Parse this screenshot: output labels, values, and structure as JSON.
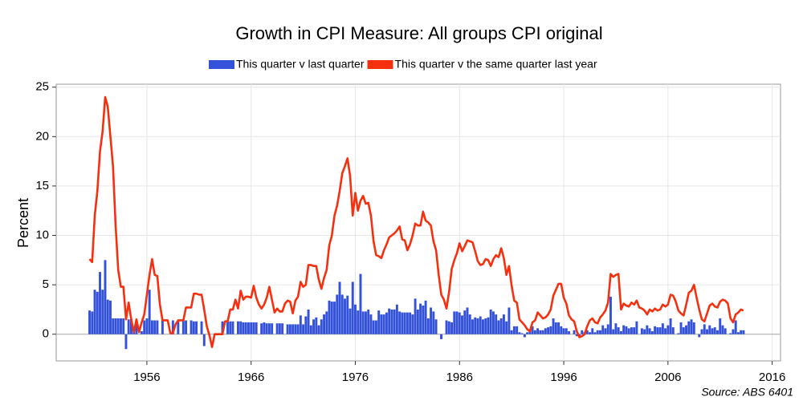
{
  "chart_data": {
    "type": "bar-line",
    "title": "Growth in CPI Measure: All groups CPI original",
    "y_label": "Percent",
    "source": "Source: ABS 6401",
    "legend": "top",
    "grid": true,
    "xlim": [
      1947.3,
      2016.8
    ],
    "xticks": [
      1956,
      1966,
      1976,
      1986,
      1996,
      2006,
      2016
    ],
    "ylim": [
      -2.7,
      25.3
    ],
    "yticks": [
      0,
      5,
      10,
      15,
      20,
      25
    ],
    "x": [
      1950.5,
      1950.75,
      1951,
      1951.25,
      1951.5,
      1951.75,
      1952,
      1952.25,
      1952.5,
      1952.75,
      1953,
      1953.25,
      1953.5,
      1953.75,
      1954,
      1954.25,
      1954.5,
      1954.75,
      1955,
      1955.25,
      1955.5,
      1955.75,
      1956,
      1956.25,
      1956.5,
      1956.75,
      1957,
      1957.25,
      1957.5,
      1957.75,
      1958,
      1958.25,
      1958.5,
      1958.75,
      1959,
      1959.25,
      1959.5,
      1959.75,
      1960,
      1960.25,
      1960.5,
      1960.75,
      1961,
      1961.25,
      1961.5,
      1961.75,
      1962,
      1962.25,
      1962.5,
      1962.75,
      1963,
      1963.25,
      1963.5,
      1963.75,
      1964,
      1964.25,
      1964.5,
      1964.75,
      1965,
      1965.25,
      1965.5,
      1965.75,
      1966,
      1966.25,
      1966.5,
      1966.75,
      1967,
      1967.25,
      1967.5,
      1967.75,
      1968,
      1968.25,
      1968.5,
      1968.75,
      1969,
      1969.25,
      1969.5,
      1969.75,
      1970,
      1970.25,
      1970.5,
      1970.75,
      1971,
      1971.25,
      1971.5,
      1971.75,
      1972,
      1972.25,
      1972.5,
      1972.75,
      1973,
      1973.25,
      1973.5,
      1973.75,
      1974,
      1974.25,
      1974.5,
      1974.75,
      1975,
      1975.25,
      1975.5,
      1975.75,
      1976,
      1976.25,
      1976.5,
      1976.75,
      1977,
      1977.25,
      1977.5,
      1977.75,
      1978,
      1978.25,
      1978.5,
      1978.75,
      1979,
      1979.25,
      1979.5,
      1979.75,
      1980,
      1980.25,
      1980.5,
      1980.75,
      1981,
      1981.25,
      1981.5,
      1981.75,
      1982,
      1982.25,
      1982.5,
      1982.75,
      1983,
      1983.25,
      1983.5,
      1983.75,
      1984,
      1984.25,
      1984.5,
      1984.75,
      1985,
      1985.25,
      1985.5,
      1985.75,
      1986,
      1986.25,
      1986.5,
      1986.75,
      1987,
      1987.25,
      1987.5,
      1987.75,
      1988,
      1988.25,
      1988.5,
      1988.75,
      1989,
      1989.25,
      1989.5,
      1989.75,
      1990,
      1990.25,
      1990.5,
      1990.75,
      1991,
      1991.25,
      1991.5,
      1991.75,
      1992,
      1992.25,
      1992.5,
      1992.75,
      1993,
      1993.25,
      1993.5,
      1993.75,
      1994,
      1994.25,
      1994.5,
      1994.75,
      1995,
      1995.25,
      1995.5,
      1995.75,
      1996,
      1996.25,
      1996.5,
      1996.75,
      1997,
      1997.25,
      1997.5,
      1997.75,
      1998,
      1998.25,
      1998.5,
      1998.75,
      1999,
      1999.25,
      1999.5,
      1999.75,
      2000,
      2000.25,
      2000.5,
      2000.75,
      2001,
      2001.25,
      2001.5,
      2001.75,
      2002,
      2002.25,
      2002.5,
      2002.75,
      2003,
      2003.25,
      2003.5,
      2003.75,
      2004,
      2004.25,
      2004.5,
      2004.75,
      2005,
      2005.25,
      2005.5,
      2005.75,
      2006,
      2006.25,
      2006.5,
      2006.75,
      2007,
      2007.25,
      2007.5,
      2007.75,
      2008,
      2008.25,
      2008.5,
      2008.75,
      2009,
      2009.25,
      2009.5,
      2009.75,
      2010,
      2010.25,
      2010.5,
      2010.75,
      2011,
      2011.25,
      2011.5,
      2011.75,
      2012,
      2012.25,
      2012.5,
      2012.75,
      2013,
      2013.25
    ],
    "series": [
      {
        "name": "This quarter v last quarter",
        "kind": "bar",
        "color": "#3451d9",
        "values": [
          2.4,
          2.3,
          4.5,
          4.3,
          6.3,
          4.5,
          7.5,
          3.5,
          3.4,
          1.6,
          1.6,
          1.6,
          1.6,
          1.6,
          -1.5,
          1.5,
          1.5,
          0.2,
          1.4,
          0,
          0.3,
          1.4,
          1.6,
          4.5,
          1.4,
          1.4,
          1.4,
          0,
          1.4,
          0,
          0,
          0,
          1.4,
          0,
          1.4,
          0,
          1.4,
          1.4,
          0,
          1.4,
          1.3,
          1.3,
          0,
          1.3,
          -1.2,
          0,
          0,
          0,
          0,
          0,
          0,
          1.3,
          0,
          1.3,
          1.3,
          1.3,
          0,
          1.3,
          1.3,
          1.2,
          1.2,
          1.2,
          1.2,
          1.2,
          1.2,
          0,
          1.1,
          1.2,
          1.1,
          1.1,
          1.1,
          0,
          1.1,
          1.1,
          1.1,
          0,
          1.0,
          1.0,
          1.0,
          1.0,
          1.0,
          1.9,
          1.0,
          1.8,
          2.5,
          0.9,
          1.5,
          1.7,
          0.9,
          1.5,
          2.0,
          2.3,
          3.4,
          3.3,
          3.3,
          4.0,
          5.3,
          4.0,
          3.6,
          3.9,
          2.6,
          5.3,
          3.0,
          2.4,
          6.1,
          2.3,
          2.3,
          2.5,
          2.0,
          1.4,
          1.4,
          2.4,
          2.0,
          2.0,
          2.2,
          2.6,
          2.5,
          2.5,
          3.0,
          2.3,
          2.2,
          2.2,
          2.2,
          2.2,
          2.0,
          3.6,
          2.5,
          3.1,
          2.9,
          3.4,
          1.6,
          2.7,
          2.3,
          1.5,
          0.0,
          -0.5,
          0.0,
          1.4,
          1.3,
          1.2,
          2.3,
          2.3,
          2.2,
          1.9,
          2.4,
          2.7,
          2.0,
          1.5,
          1.7,
          1.6,
          1.8,
          1.5,
          1.6,
          1.7,
          2.5,
          2.3,
          2.0,
          1.4,
          1.6,
          2.0,
          1.3,
          2.7,
          0.4,
          0.8,
          0.8,
          0.2,
          0.1,
          -0.3,
          0.2,
          0.3,
          0.8,
          0.4,
          0.6,
          0.4,
          0.4,
          0.6,
          0.7,
          0.8,
          1.6,
          1.2,
          1.2,
          0.8,
          0.6,
          0.6,
          0.3,
          0.0,
          0.4,
          -0.2,
          -0.3,
          0.4,
          0.2,
          0.4,
          0.2,
          0.6,
          0.2,
          0.4,
          0.4,
          0.9,
          0.6,
          1.0,
          3.8,
          0.5,
          1.1,
          0.7,
          0.3,
          0.9,
          0.8,
          0.6,
          0.7,
          0.7,
          1.3,
          0.0,
          0.6,
          0.5,
          0.9,
          0.6,
          0.3,
          0.8,
          0.7,
          0.7,
          1.1,
          0.6,
          0.9,
          1.6,
          0.7,
          0.0,
          0.1,
          1.2,
          0.7,
          0.9,
          1.3,
          1.5,
          1.2,
          0.0,
          -0.3,
          0.5,
          1.0,
          0.5,
          0.9,
          0.6,
          0.7,
          0.4,
          1.6,
          0.9,
          0.6,
          0.0,
          0.1,
          0.5,
          1.4,
          0.2,
          0.4,
          0.4
        ]
      },
      {
        "name": "This quarter v the same quarter last year",
        "kind": "line",
        "color": "#f5300f",
        "values": [
          7.6,
          7.3,
          12.0,
          14.5,
          18.5,
          20.5,
          24.0,
          23.0,
          20.0,
          17.0,
          11.0,
          6.5,
          4.8,
          4.8,
          1.5,
          3.2,
          1.5,
          0.2,
          1.5,
          0.2,
          1.2,
          2.0,
          4.0,
          6.0,
          7.6,
          6.0,
          5.9,
          3.0,
          1.4,
          1.4,
          1.4,
          0.1,
          0.1,
          1.0,
          1.4,
          1.4,
          1.4,
          2.7,
          2.7,
          2.7,
          4.1,
          4.1,
          4.0,
          4.0,
          2.5,
          0.8,
          -0.1,
          -1.3,
          0.0,
          0.0,
          0.0,
          0.0,
          1.3,
          1.3,
          2.5,
          2.5,
          3.5,
          2.6,
          4.4,
          3.5,
          3.8,
          3.8,
          3.7,
          4.9,
          3.7,
          3.0,
          2.6,
          3.0,
          3.7,
          4.8,
          3.5,
          2.2,
          2.6,
          2.3,
          2.3,
          3.1,
          3.4,
          3.3,
          2.1,
          3.4,
          3.8,
          5.3,
          4.8,
          5.0,
          7.0,
          7.0,
          6.9,
          6.9,
          5.5,
          4.6,
          5.7,
          6.5,
          9.0,
          10.0,
          12.0,
          13.0,
          14.5,
          16.3,
          17.0,
          17.8,
          16.0,
          12.0,
          14.3,
          12.5,
          13.5,
          14.0,
          13.2,
          13.3,
          12.0,
          9.4,
          8.0,
          7.9,
          7.7,
          8.5,
          9.1,
          9.8,
          10.0,
          10.2,
          10.5,
          10.9,
          9.6,
          9.5,
          8.5,
          9.1,
          10.0,
          11.2,
          11.0,
          11.0,
          12.4,
          11.5,
          11.3,
          11.0,
          9.4,
          8.5,
          6.0,
          4.0,
          3.5,
          2.6,
          4.3,
          6.6,
          7.5,
          8.2,
          9.2,
          8.4,
          8.9,
          9.5,
          9.4,
          9.3,
          8.4,
          7.4,
          7.0,
          7.1,
          7.6,
          7.5,
          6.9,
          7.6,
          8.0,
          7.8,
          8.7,
          7.7,
          6.0,
          6.9,
          4.9,
          3.4,
          3.2,
          1.5,
          1.2,
          0.9,
          0.5,
          0.3,
          1.2,
          1.4,
          2.2,
          1.9,
          1.6,
          1.7,
          2.0,
          2.5,
          3.9,
          4.5,
          5.1,
          5.1,
          3.7,
          3.1,
          1.9,
          1.5,
          1.3,
          0.3,
          -0.3,
          -0.2,
          0.0,
          0.8,
          1.4,
          1.6,
          1.2,
          1.1,
          1.7,
          2.0,
          2.4,
          3.2,
          6.1,
          5.8,
          6.0,
          6.1,
          2.5,
          3.1,
          2.9,
          2.8,
          3.2,
          3.0,
          3.4,
          2.7,
          2.6,
          2.4,
          2.0,
          2.5,
          2.3,
          2.6,
          2.4,
          2.5,
          3.0,
          2.8,
          3.0,
          4.0,
          3.9,
          3.3,
          2.4,
          2.1,
          1.9,
          3.0,
          4.2,
          4.4,
          5.0,
          3.7,
          2.5,
          1.5,
          1.3,
          2.1,
          2.9,
          3.1,
          2.8,
          2.7,
          3.3,
          3.5,
          3.4,
          3.1,
          1.6,
          1.2,
          2.0,
          2.2,
          2.5,
          2.4
        ]
      }
    ]
  }
}
